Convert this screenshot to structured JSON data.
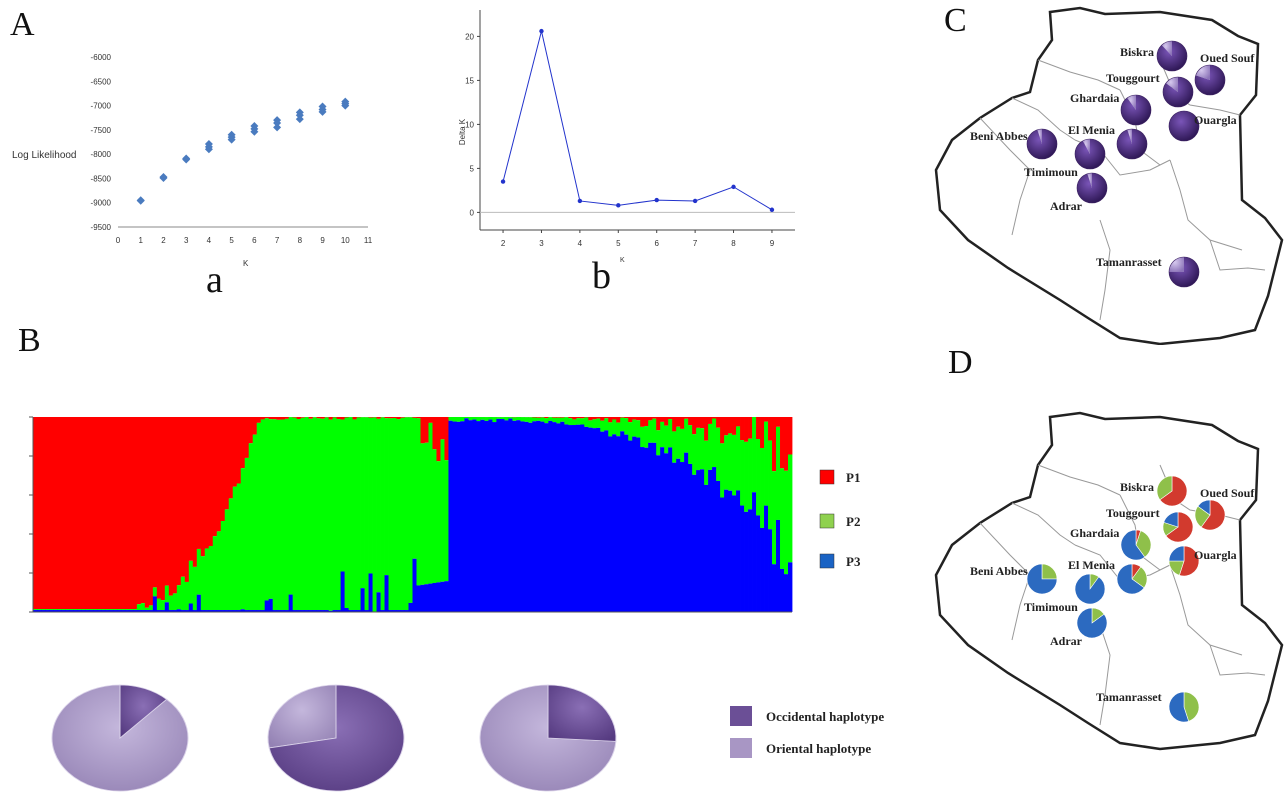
{
  "panels": {
    "A": "A",
    "B": "B",
    "C": "C",
    "D": "D",
    "a": "a",
    "b": "b"
  },
  "chart_data": [
    {
      "id": "loglik",
      "type": "scatter",
      "ylabel": "Log Likelihood",
      "xlabel": "K",
      "xlim": [
        0,
        11
      ],
      "ylim": [
        -9500,
        -6000
      ],
      "xticks": [
        0,
        1,
        2,
        3,
        4,
        5,
        6,
        7,
        8,
        9,
        10,
        11
      ],
      "yticks": [
        -6000,
        -6500,
        -7000,
        -7500,
        -8000,
        -8500,
        -9000,
        -9500
      ],
      "color": "#4a7bbf",
      "points": [
        [
          1,
          -8960
        ],
        [
          1,
          -8950
        ],
        [
          2,
          -8470
        ],
        [
          2,
          -8490
        ],
        [
          3,
          -8090
        ],
        [
          3,
          -8110
        ],
        [
          4,
          -7790
        ],
        [
          4,
          -7850
        ],
        [
          4,
          -7900
        ],
        [
          5,
          -7600
        ],
        [
          5,
          -7650
        ],
        [
          5,
          -7700
        ],
        [
          6,
          -7420
        ],
        [
          6,
          -7480
        ],
        [
          6,
          -7540
        ],
        [
          7,
          -7300
        ],
        [
          7,
          -7360
        ],
        [
          7,
          -7450
        ],
        [
          8,
          -7140
        ],
        [
          8,
          -7200
        ],
        [
          8,
          -7280
        ],
        [
          9,
          -7020
        ],
        [
          9,
          -7080
        ],
        [
          9,
          -7130
        ],
        [
          10,
          -6920
        ],
        [
          10,
          -6960
        ],
        [
          10,
          -7000
        ]
      ]
    },
    {
      "id": "deltak",
      "type": "line",
      "ylabel": "Delta K",
      "xlabel": "K",
      "xlim": [
        1.4,
        9.6
      ],
      "ylim": [
        -2,
        23
      ],
      "xticks": [
        2,
        3,
        4,
        5,
        6,
        7,
        8,
        9
      ],
      "yticks": [
        0,
        5,
        10,
        15,
        20
      ],
      "color": "#2233cc",
      "x": [
        2,
        3,
        4,
        5,
        6,
        7,
        8,
        9
      ],
      "y": [
        3.5,
        20.6,
        1.3,
        0.8,
        1.4,
        1.3,
        2.9,
        0.3
      ]
    },
    {
      "id": "structure",
      "type": "bar",
      "stacked": true,
      "series": [
        {
          "name": "P1",
          "color": "#ff0000"
        },
        {
          "name": "P2",
          "color": "#00ff00"
        },
        {
          "name": "P3",
          "color": "#0000ff"
        }
      ],
      "groups": [
        {
          "from": 0,
          "to": 0.295,
          "dominant": "P1"
        },
        {
          "from": 0.295,
          "to": 0.545,
          "dominant": "P2"
        },
        {
          "from": 0.545,
          "to": 1.0,
          "dominant": "P3"
        }
      ]
    },
    {
      "id": "haplotype_pies",
      "type": "pie",
      "series": [
        {
          "name": "Occidental haplotype",
          "color": "#6b4f96"
        },
        {
          "name": "Oriental haplotype",
          "color": "#a896c4"
        }
      ],
      "pies": [
        {
          "occidental": 0.12,
          "oriental": 0.88
        },
        {
          "occidental": 0.72,
          "oriental": 0.28
        },
        {
          "occidental": 0.26,
          "oriental": 0.74
        }
      ]
    }
  ],
  "map_c": {
    "populations": [
      {
        "name": "Biskra",
        "occ": 0.88
      },
      {
        "name": "Oued Souf",
        "occ": 0.8
      },
      {
        "name": "Touggourt",
        "occ": 0.85
      },
      {
        "name": "Ghardaia",
        "occ": 0.9
      },
      {
        "name": "Ouargla",
        "occ": 1.0
      },
      {
        "name": "El Menia",
        "occ": 0.95
      },
      {
        "name": "Beni Abbes",
        "occ": 0.95
      },
      {
        "name": "Timimoun",
        "occ": 0.92
      },
      {
        "name": "Adrar",
        "occ": 0.95
      },
      {
        "name": "Tamanrasset",
        "occ": 0.75
      }
    ]
  },
  "map_d": {
    "populations": [
      {
        "name": "Biskra",
        "p1": 0.65,
        "p2": 0.35,
        "p3": 0.0
      },
      {
        "name": "Oued Souf",
        "p1": 0.6,
        "p2": 0.25,
        "p3": 0.15
      },
      {
        "name": "Touggourt",
        "p1": 0.65,
        "p2": 0.15,
        "p3": 0.2
      },
      {
        "name": "Ghardaia",
        "p1": 0.05,
        "p2": 0.35,
        "p3": 0.6
      },
      {
        "name": "Ouargla",
        "p1": 0.55,
        "p2": 0.2,
        "p3": 0.25
      },
      {
        "name": "El Menia",
        "p1": 0.1,
        "p2": 0.25,
        "p3": 0.65
      },
      {
        "name": "Beni Abbes",
        "p1": 0.0,
        "p2": 0.25,
        "p3": 0.75
      },
      {
        "name": "Timimoun",
        "p1": 0.0,
        "p2": 0.1,
        "p3": 0.9
      },
      {
        "name": "Adrar",
        "p1": 0.0,
        "p2": 0.15,
        "p3": 0.85
      },
      {
        "name": "Tamanrasset",
        "p1": 0.0,
        "p2": 0.45,
        "p3": 0.55
      }
    ]
  }
}
